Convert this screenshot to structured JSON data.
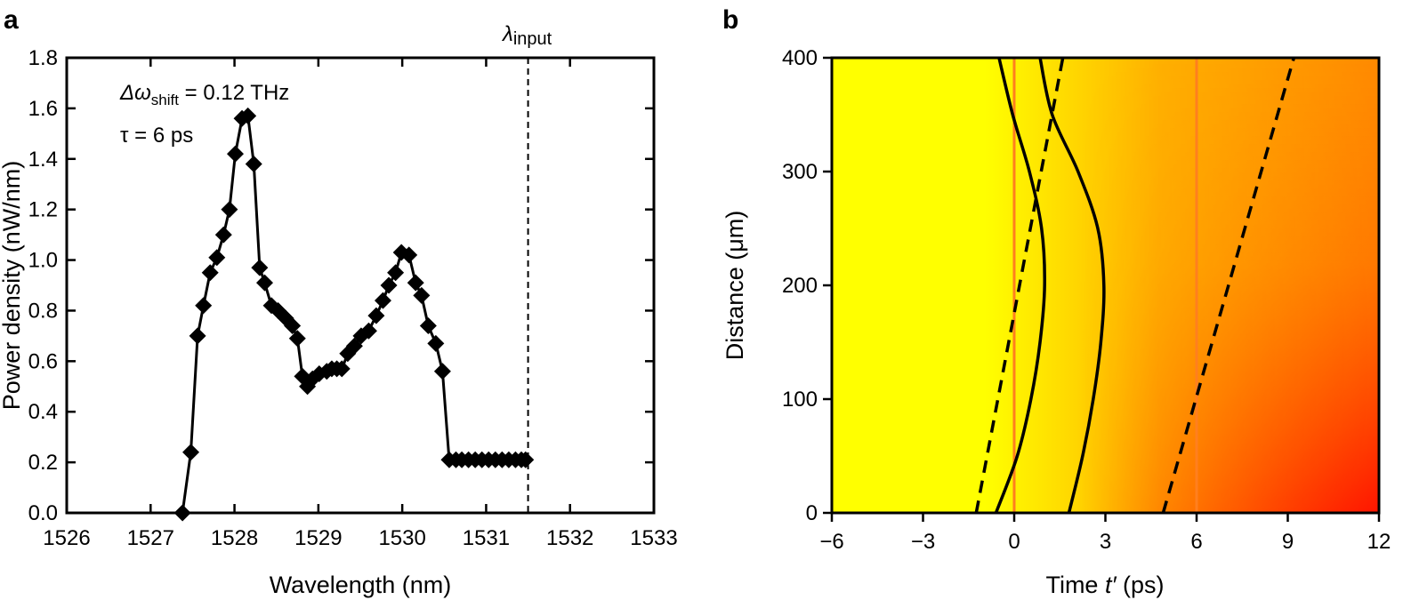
{
  "panel_a": {
    "label": "a"
  },
  "panel_b": {
    "label": "b"
  },
  "chart_data": [
    {
      "type": "line",
      "panel": "a",
      "xlabel": "Wavelength (nm)",
      "ylabel": "Power density (nW/nm)",
      "xlim": [
        1526,
        1533
      ],
      "ylim": [
        0,
        1.8
      ],
      "xticks": [
        "1526",
        "1527",
        "1528",
        "1529",
        "1530",
        "1531",
        "1532",
        "1533"
      ],
      "yticks": [
        "0.0",
        "0.2",
        "0.4",
        "0.6",
        "0.8",
        "1.0",
        "1.2",
        "1.4",
        "1.6",
        "1.8"
      ],
      "annotations": {
        "delta_prefix": "Δω",
        "delta_sub": "shift",
        "delta_value": " = 0.12 THz",
        "tau": "τ = 6 ps",
        "lambda_main": "λ",
        "lambda_sub": "input"
      },
      "input_wavelength": 1531.5,
      "series": [
        {
          "name": "spectrum",
          "marker": "diamond",
          "x": [
            1527.38,
            1527.48,
            1527.56,
            1527.63,
            1527.71,
            1527.79,
            1527.87,
            1527.94,
            1528.01,
            1528.09,
            1528.16,
            1528.23,
            1528.3,
            1528.36,
            1528.44,
            1528.52,
            1528.61,
            1528.69,
            1528.75,
            1528.81,
            1528.87,
            1528.93,
            1529.01,
            1529.1,
            1529.16,
            1529.22,
            1529.28,
            1529.35,
            1529.43,
            1529.51,
            1529.6,
            1529.69,
            1529.77,
            1529.84,
            1529.92,
            1529.99,
            1530.08,
            1530.16,
            1530.23,
            1530.31,
            1530.4,
            1530.48,
            1530.56,
            1530.64,
            1530.71,
            1530.79,
            1530.87,
            1530.95,
            1531.03,
            1531.11,
            1531.19,
            1531.27,
            1531.35,
            1531.42,
            1531.47
          ],
          "y": [
            0.0,
            0.24,
            0.7,
            0.82,
            0.95,
            1.01,
            1.1,
            1.2,
            1.42,
            1.56,
            1.57,
            1.38,
            0.97,
            0.91,
            0.82,
            0.8,
            0.77,
            0.74,
            0.69,
            0.54,
            0.5,
            0.53,
            0.55,
            0.56,
            0.57,
            0.57,
            0.57,
            0.63,
            0.66,
            0.7,
            0.72,
            0.78,
            0.84,
            0.9,
            0.95,
            1.03,
            1.02,
            0.91,
            0.86,
            0.74,
            0.67,
            0.56,
            0.21,
            0.21,
            0.21,
            0.21,
            0.21,
            0.21,
            0.21,
            0.21,
            0.21,
            0.21,
            0.21,
            0.21,
            0.21
          ]
        }
      ]
    },
    {
      "type": "heatmap",
      "panel": "b",
      "xlabel_prefix": "Time ",
      "xlabel_var": "t′",
      "xlabel_suffix": " (ps)",
      "ylabel": "Distance (μm)",
      "xlim": [
        -6,
        12
      ],
      "ylim": [
        0,
        400
      ],
      "xticks": [
        "−6",
        "−3",
        "0",
        "3",
        "6",
        "9",
        "12"
      ],
      "yticks": [
        "0",
        "100",
        "200",
        "300",
        "400"
      ],
      "colors": {
        "low": "#ffff00",
        "mid": "#ffaa00",
        "high": "#ff0000",
        "vertical_lines": "#ff7f1f"
      },
      "vertical_lines_t": [
        0,
        6
      ],
      "dashed_lines": [
        {
          "t0": -1.25,
          "t400": 1.6
        },
        {
          "t0": 4.9,
          "t400": 9.2
        }
      ],
      "solid_curves": [
        {
          "t_at_z": [
            -0.6,
            0.1,
            0.55,
            0.85,
            1.0,
            0.9,
            0.5,
            -0.05,
            -0.5
          ],
          "z": [
            0,
            50,
            100,
            150,
            200,
            250,
            300,
            350,
            400
          ]
        },
        {
          "t_at_z": [
            1.8,
            2.25,
            2.6,
            2.85,
            2.95,
            2.75,
            2.1,
            1.25,
            0.85
          ],
          "z": [
            0,
            50,
            100,
            150,
            200,
            250,
            300,
            350,
            400
          ]
        }
      ]
    }
  ]
}
